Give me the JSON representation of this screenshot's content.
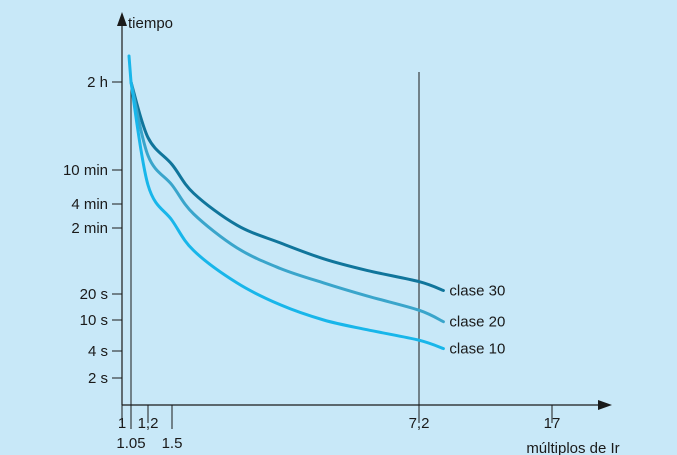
{
  "colors": {
    "background": "#c8e8f8",
    "axis": "#1a1a1a",
    "clase_30": "#10759b",
    "clase_20": "#3aa5cb",
    "clase_10": "#18b6ea"
  },
  "chart_data": {
    "type": "line",
    "title": "",
    "xlabel": "múltiplos de Ir",
    "ylabel": "tiempo",
    "grid": false,
    "legend": "labels at line ends",
    "x_ticks": [
      {
        "label": "1",
        "value": 1
      },
      {
        "label": "1,2",
        "value": 1.2
      },
      {
        "label": "7,2",
        "value": 7.2
      },
      {
        "label": "17",
        "value": 17
      }
    ],
    "x_ticks_lower": [
      {
        "label": "1.05",
        "value": 1.05
      },
      {
        "label": "1.5",
        "value": 1.5
      }
    ],
    "y_ticks": [
      {
        "label": "2 h",
        "seconds": 7200
      },
      {
        "label": "10 min",
        "seconds": 600
      },
      {
        "label": "4 min",
        "seconds": 240
      },
      {
        "label": "2 min",
        "seconds": 120
      },
      {
        "label": "20 s",
        "seconds": 20
      },
      {
        "label": "10 s",
        "seconds": 10
      },
      {
        "label": "4 s",
        "seconds": 4
      },
      {
        "label": "2 s",
        "seconds": 2
      }
    ],
    "reference_line_x": 7.2,
    "series": [
      {
        "name": "clase 30",
        "x": [
          1.05,
          1.2,
          1.5,
          2,
          3,
          4,
          5,
          6,
          7.2,
          9
        ],
        "y": [
          7200,
          1500,
          700,
          320,
          130,
          80,
          52,
          38,
          28,
          22
        ]
      },
      {
        "name": "clase 20",
        "x": [
          1.05,
          1.2,
          1.5,
          2,
          3,
          4,
          5,
          6,
          7.2,
          9
        ],
        "y": [
          7200,
          900,
          400,
          180,
          70,
          40,
          27,
          19,
          13,
          9.5
        ]
      },
      {
        "name": "clase 10",
        "x": [
          1.05,
          1.2,
          1.5,
          2,
          3,
          4,
          5,
          6,
          7.2,
          9
        ],
        "y": [
          7200,
          400,
          150,
          65,
          27,
          15,
          10,
          7.5,
          5.5,
          4.3
        ]
      }
    ]
  }
}
